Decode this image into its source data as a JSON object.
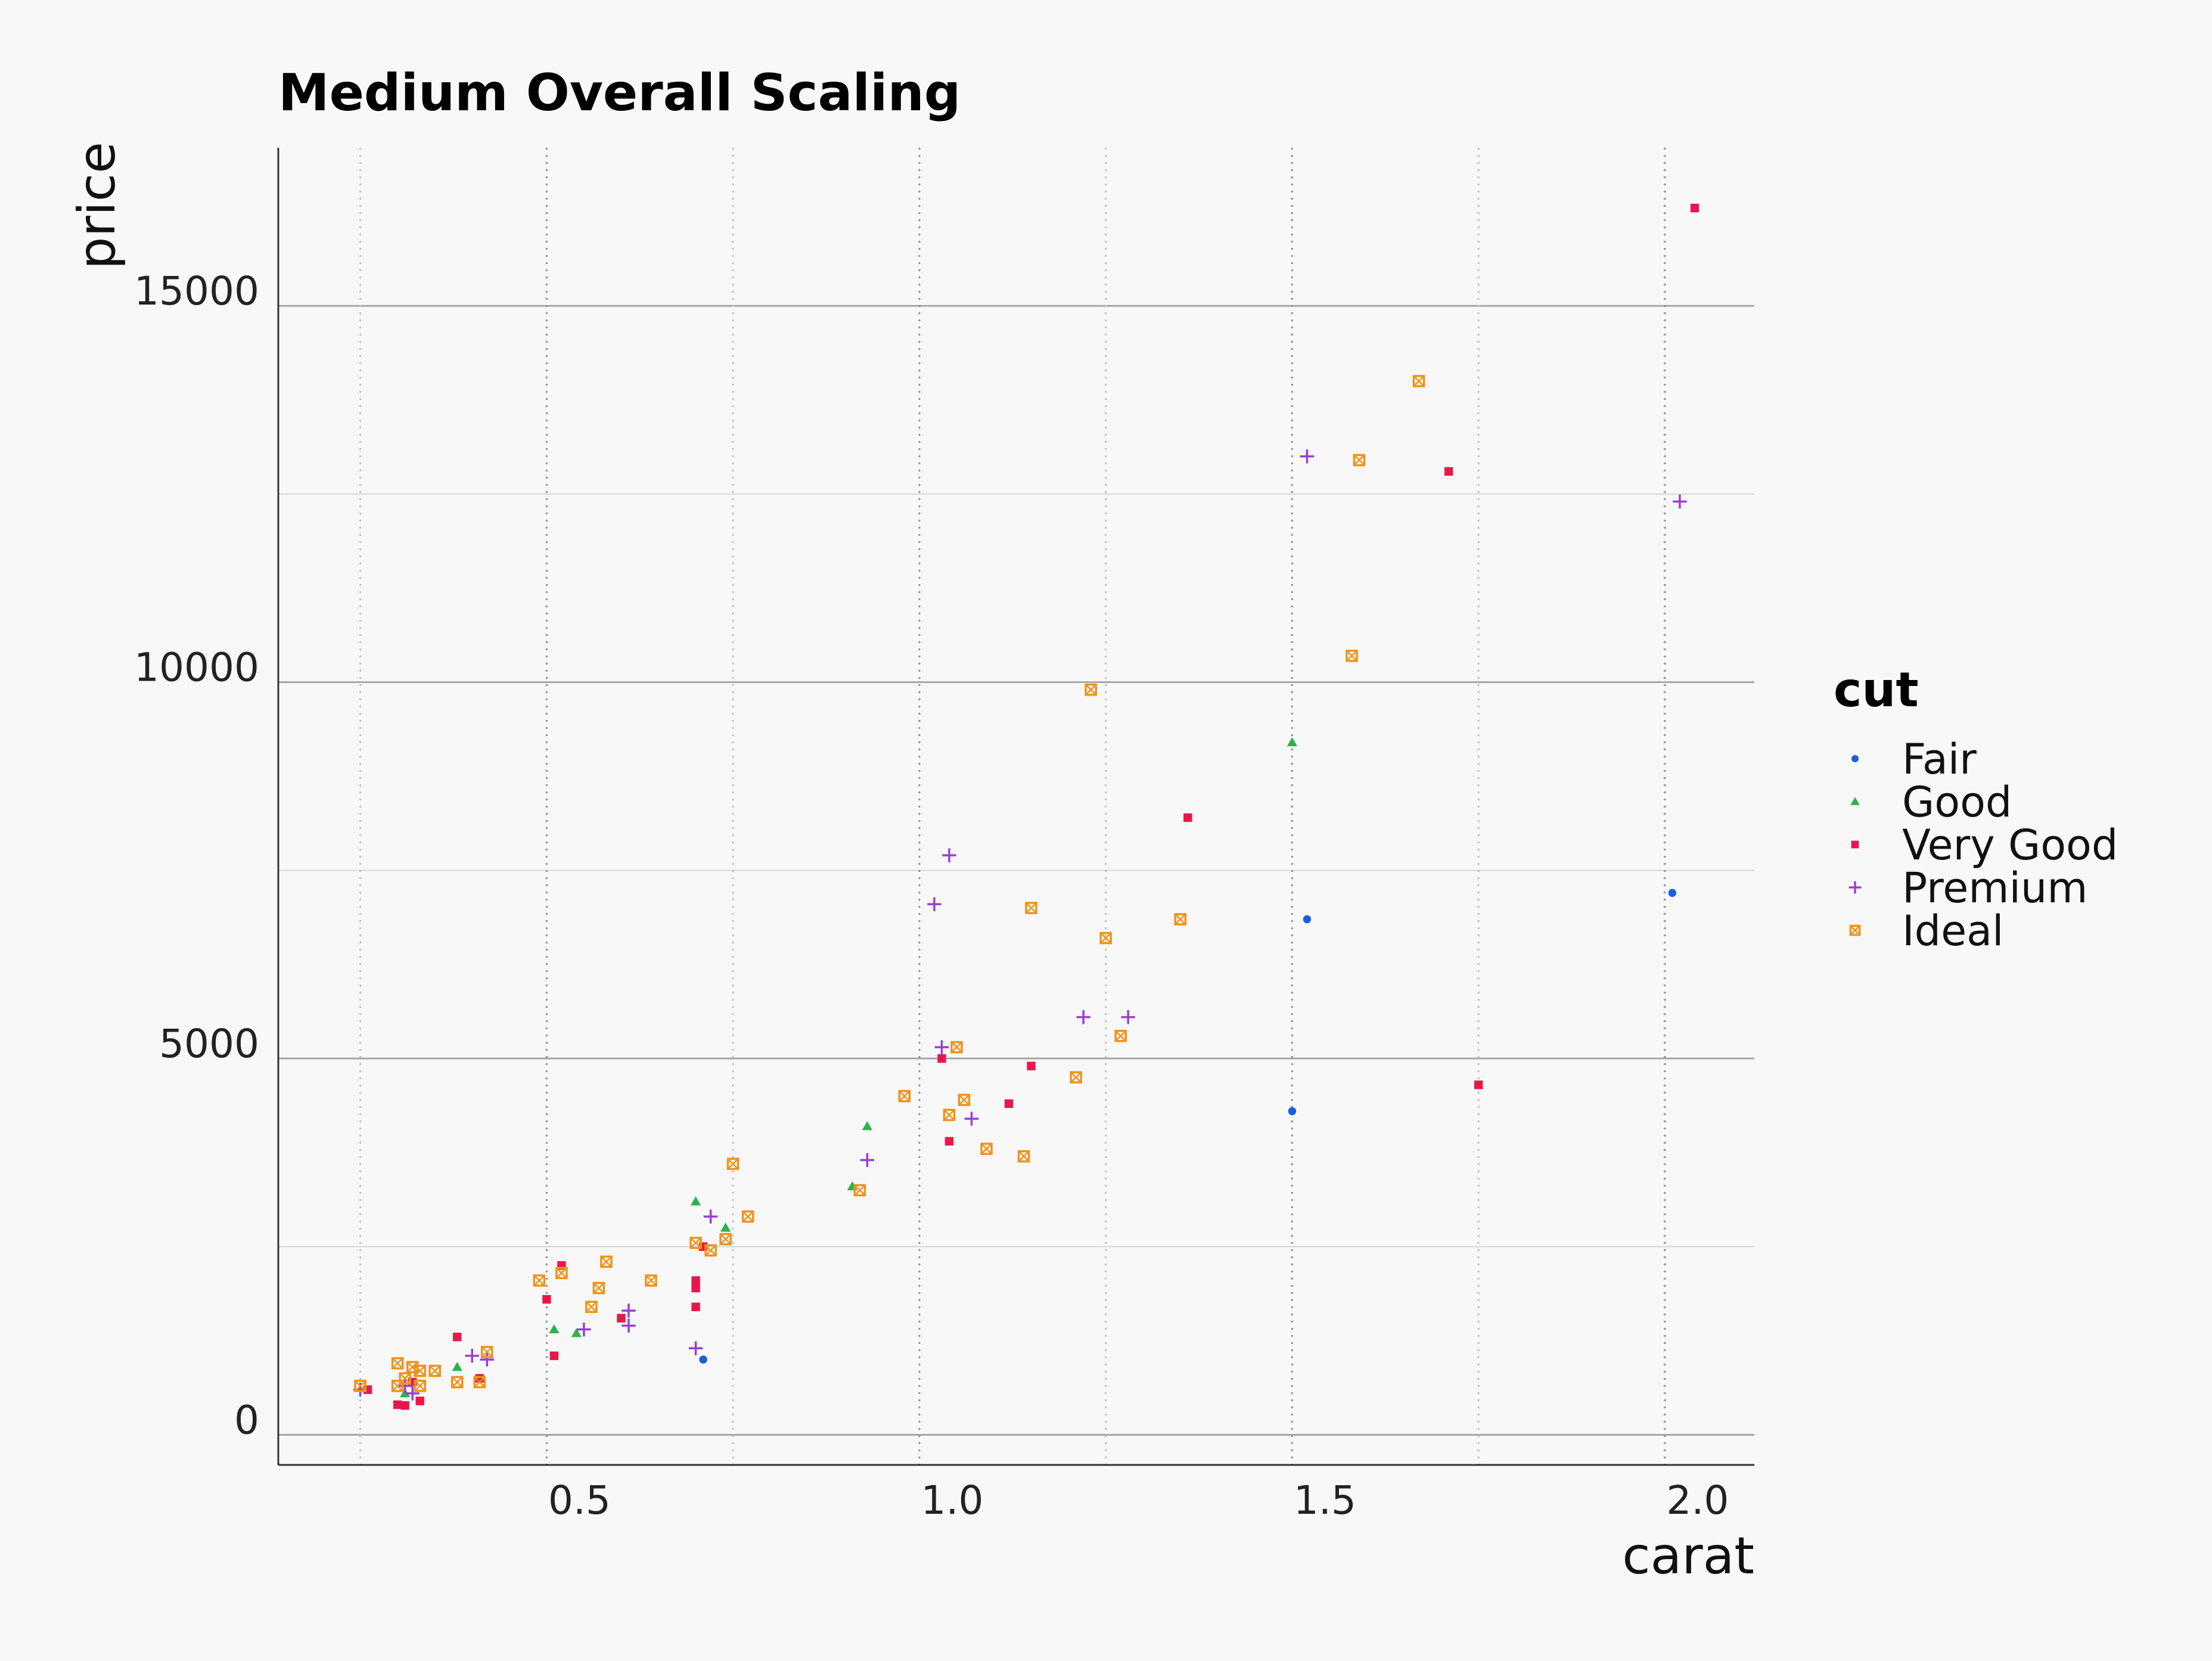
{
  "chart_data": {
    "type": "scatter",
    "title": "Medium Overall Scaling",
    "xlabel": "carat",
    "ylabel": "price",
    "xlim": [
      0.14,
      2.12
    ],
    "ylim": [
      -400,
      17100
    ],
    "x_ticks": [
      0.5,
      1.0,
      1.5,
      2.0
    ],
    "x_tick_labels": [
      "0.5",
      "1.0",
      "1.5",
      "2.0"
    ],
    "y_ticks": [
      0,
      5000,
      10000,
      15000
    ],
    "y_tick_labels": [
      "0",
      "5000",
      "10000",
      "15000"
    ],
    "x_minor_ticks": [
      0.25,
      0.75,
      1.25,
      1.75
    ],
    "y_minor_ticks": [
      2500,
      7500,
      12500
    ],
    "grid": true,
    "legend": {
      "title": "cut",
      "position": "right"
    },
    "series": [
      {
        "name": "Fair",
        "marker": "circle",
        "color": "#1a5fe0",
        "points": [
          [
            0.71,
            1000
          ],
          [
            1.5,
            4300
          ],
          [
            1.52,
            6850
          ],
          [
            2.01,
            7200
          ]
        ]
      },
      {
        "name": "Good",
        "marker": "triangle",
        "color": "#2bb34a",
        "points": [
          [
            0.31,
            550
          ],
          [
            0.38,
            900
          ],
          [
            0.51,
            1400
          ],
          [
            0.54,
            1350
          ],
          [
            0.7,
            3100
          ],
          [
            0.74,
            2750
          ],
          [
            0.91,
            3300
          ],
          [
            0.93,
            4100
          ],
          [
            1.5,
            9200
          ]
        ]
      },
      {
        "name": "Very Good",
        "marker": "square",
        "color": "#e8174a",
        "points": [
          [
            0.26,
            600
          ],
          [
            0.3,
            400
          ],
          [
            0.31,
            390
          ],
          [
            0.32,
            700
          ],
          [
            0.33,
            450
          ],
          [
            0.38,
            1300
          ],
          [
            0.41,
            750
          ],
          [
            0.5,
            1800
          ],
          [
            0.51,
            1050
          ],
          [
            0.52,
            2250
          ],
          [
            0.6,
            1550
          ],
          [
            0.7,
            2050
          ],
          [
            0.7,
            1950
          ],
          [
            0.7,
            1700
          ],
          [
            0.71,
            2500
          ],
          [
            1.03,
            5000
          ],
          [
            1.04,
            3900
          ],
          [
            1.12,
            4400
          ],
          [
            1.15,
            4900
          ],
          [
            1.36,
            8200
          ],
          [
            1.71,
            12800
          ],
          [
            1.75,
            4650
          ],
          [
            2.04,
            16300
          ]
        ]
      },
      {
        "name": "Premium",
        "marker": "plus",
        "color": "#9b3dd4",
        "points": [
          [
            0.25,
            600
          ],
          [
            0.31,
            650
          ],
          [
            0.32,
            550
          ],
          [
            0.4,
            1050
          ],
          [
            0.42,
            1000
          ],
          [
            0.55,
            1400
          ],
          [
            0.61,
            1650
          ],
          [
            0.61,
            1450
          ],
          [
            0.7,
            1150
          ],
          [
            0.72,
            2900
          ],
          [
            0.93,
            3650
          ],
          [
            1.02,
            7050
          ],
          [
            1.03,
            5150
          ],
          [
            1.04,
            7700
          ],
          [
            1.07,
            4200
          ],
          [
            1.22,
            5550
          ],
          [
            1.28,
            5550
          ],
          [
            1.52,
            13000
          ],
          [
            2.02,
            12400
          ]
        ]
      },
      {
        "name": "Ideal",
        "marker": "boxx",
        "color": "#f0931a",
        "points": [
          [
            0.25,
            650
          ],
          [
            0.3,
            950
          ],
          [
            0.3,
            650
          ],
          [
            0.31,
            750
          ],
          [
            0.32,
            900
          ],
          [
            0.33,
            850
          ],
          [
            0.33,
            650
          ],
          [
            0.35,
            850
          ],
          [
            0.38,
            700
          ],
          [
            0.41,
            700
          ],
          [
            0.42,
            1100
          ],
          [
            0.49,
            2050
          ],
          [
            0.52,
            2150
          ],
          [
            0.56,
            1700
          ],
          [
            0.57,
            1950
          ],
          [
            0.58,
            2300
          ],
          [
            0.64,
            2050
          ],
          [
            0.7,
            2550
          ],
          [
            0.72,
            2450
          ],
          [
            0.74,
            2600
          ],
          [
            0.75,
            3600
          ],
          [
            0.77,
            2900
          ],
          [
            0.92,
            3250
          ],
          [
            0.98,
            4500
          ],
          [
            1.04,
            4250
          ],
          [
            1.05,
            5150
          ],
          [
            1.06,
            4450
          ],
          [
            1.09,
            3800
          ],
          [
            1.14,
            3700
          ],
          [
            1.15,
            7000
          ],
          [
            1.21,
            4750
          ],
          [
            1.23,
            9900
          ],
          [
            1.25,
            6600
          ],
          [
            1.27,
            5300
          ],
          [
            1.35,
            6850
          ],
          [
            1.58,
            10350
          ],
          [
            1.59,
            12950
          ],
          [
            1.67,
            14000
          ]
        ]
      }
    ]
  }
}
